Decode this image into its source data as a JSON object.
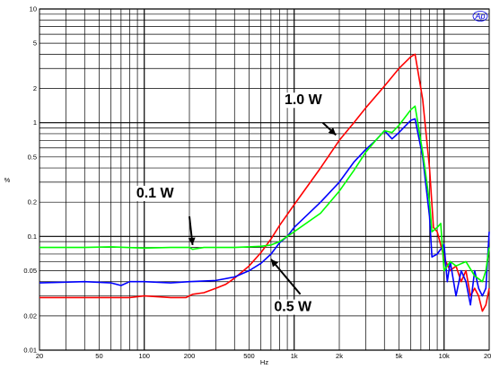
{
  "chart_data": {
    "type": "line",
    "xlabel": "Hz",
    "ylabel": "%",
    "x_scale": "log",
    "y_scale": "log",
    "xlim": [
      20,
      20000
    ],
    "ylim": [
      0.01,
      10
    ],
    "grid": true,
    "logo": "Ap",
    "x_ticks": [
      {
        "v": 20,
        "label": "20"
      },
      {
        "v": 50,
        "label": "50"
      },
      {
        "v": 100,
        "label": "100"
      },
      {
        "v": 200,
        "label": "200"
      },
      {
        "v": 500,
        "label": "500"
      },
      {
        "v": 1000,
        "label": "1k"
      },
      {
        "v": 2000,
        "label": "2k"
      },
      {
        "v": 5000,
        "label": "5k"
      },
      {
        "v": 10000,
        "label": "10k"
      },
      {
        "v": 20000,
        "label": "20k"
      }
    ],
    "y_ticks": [
      {
        "v": 0.01,
        "label": "0.01"
      },
      {
        "v": 0.02,
        "label": "0.02"
      },
      {
        "v": 0.05,
        "label": "0.05"
      },
      {
        "v": 0.1,
        "label": "0.1"
      },
      {
        "v": 0.2,
        "label": "0.2"
      },
      {
        "v": 0.5,
        "label": "0.5"
      },
      {
        "v": 1,
        "label": "1"
      },
      {
        "v": 2,
        "label": "2"
      },
      {
        "v": 5,
        "label": "5"
      },
      {
        "v": 10,
        "label": "10"
      }
    ],
    "series": [
      {
        "color": "#ff0000",
        "points": [
          [
            20,
            0.029
          ],
          [
            30,
            0.029
          ],
          [
            50,
            0.029
          ],
          [
            80,
            0.029
          ],
          [
            100,
            0.03
          ],
          [
            150,
            0.029
          ],
          [
            190,
            0.029
          ],
          [
            210,
            0.031
          ],
          [
            250,
            0.032
          ],
          [
            300,
            0.035
          ],
          [
            350,
            0.038
          ],
          [
            400,
            0.043
          ],
          [
            500,
            0.055
          ],
          [
            600,
            0.072
          ],
          [
            700,
            0.095
          ],
          [
            800,
            0.125
          ],
          [
            1000,
            0.19
          ],
          [
            1500,
            0.4
          ],
          [
            2000,
            0.7
          ],
          [
            2500,
            1.0
          ],
          [
            3000,
            1.35
          ],
          [
            4000,
            2.1
          ],
          [
            5000,
            3.0
          ],
          [
            6000,
            3.8
          ],
          [
            6400,
            4.0
          ],
          [
            7200,
            1.6
          ],
          [
            8000,
            0.4
          ],
          [
            8500,
            0.12
          ],
          [
            9000,
            0.11
          ],
          [
            10000,
            0.065
          ],
          [
            11000,
            0.05
          ],
          [
            12000,
            0.055
          ],
          [
            13000,
            0.04
          ],
          [
            14000,
            0.05
          ],
          [
            15000,
            0.03
          ],
          [
            16000,
            0.035
          ],
          [
            17000,
            0.03
          ],
          [
            18000,
            0.022
          ],
          [
            19000,
            0.025
          ],
          [
            20000,
            0.035
          ]
        ]
      },
      {
        "color": "#0000ff",
        "points": [
          [
            20,
            0.039
          ],
          [
            40,
            0.04
          ],
          [
            60,
            0.039
          ],
          [
            70,
            0.037
          ],
          [
            80,
            0.04
          ],
          [
            100,
            0.04
          ],
          [
            150,
            0.039
          ],
          [
            200,
            0.04
          ],
          [
            300,
            0.041
          ],
          [
            400,
            0.044
          ],
          [
            500,
            0.05
          ],
          [
            600,
            0.058
          ],
          [
            700,
            0.07
          ],
          [
            800,
            0.088
          ],
          [
            900,
            0.1
          ],
          [
            1000,
            0.12
          ],
          [
            1500,
            0.2
          ],
          [
            2000,
            0.3
          ],
          [
            2500,
            0.45
          ],
          [
            3000,
            0.58
          ],
          [
            3500,
            0.7
          ],
          [
            4000,
            0.85
          ],
          [
            4500,
            0.72
          ],
          [
            5000,
            0.82
          ],
          [
            6000,
            1.05
          ],
          [
            6400,
            1.08
          ],
          [
            7200,
            0.5
          ],
          [
            8000,
            0.15
          ],
          [
            8300,
            0.066
          ],
          [
            9000,
            0.07
          ],
          [
            10000,
            0.085
          ],
          [
            10500,
            0.04
          ],
          [
            11000,
            0.06
          ],
          [
            12000,
            0.03
          ],
          [
            13000,
            0.05
          ],
          [
            14000,
            0.04
          ],
          [
            15000,
            0.025
          ],
          [
            16000,
            0.05
          ],
          [
            17000,
            0.035
          ],
          [
            18000,
            0.03
          ],
          [
            19000,
            0.035
          ],
          [
            20000,
            0.11
          ]
        ]
      },
      {
        "color": "#00ff00",
        "points": [
          [
            20,
            0.08
          ],
          [
            40,
            0.08
          ],
          [
            60,
            0.081
          ],
          [
            100,
            0.079
          ],
          [
            150,
            0.08
          ],
          [
            200,
            0.08
          ],
          [
            210,
            0.077
          ],
          [
            250,
            0.08
          ],
          [
            300,
            0.08
          ],
          [
            400,
            0.08
          ],
          [
            500,
            0.081
          ],
          [
            600,
            0.082
          ],
          [
            700,
            0.084
          ],
          [
            800,
            0.09
          ],
          [
            1000,
            0.11
          ],
          [
            1500,
            0.16
          ],
          [
            2000,
            0.25
          ],
          [
            2500,
            0.38
          ],
          [
            3000,
            0.55
          ],
          [
            3500,
            0.7
          ],
          [
            4000,
            0.85
          ],
          [
            4500,
            0.82
          ],
          [
            5000,
            0.95
          ],
          [
            6000,
            1.3
          ],
          [
            6400,
            1.4
          ],
          [
            7200,
            0.55
          ],
          [
            8000,
            0.2
          ],
          [
            8300,
            0.11
          ],
          [
            9000,
            0.12
          ],
          [
            9500,
            0.13
          ],
          [
            10000,
            0.05
          ],
          [
            11000,
            0.06
          ],
          [
            12000,
            0.055
          ],
          [
            14000,
            0.06
          ],
          [
            16000,
            0.045
          ],
          [
            18000,
            0.04
          ],
          [
            19000,
            0.05
          ],
          [
            20000,
            0.08
          ]
        ]
      }
    ],
    "annotations": [
      {
        "text": "1.0 W",
        "label_x": 1150,
        "label_y": 1.45,
        "arrow_from": [
          1550,
          1.0
        ],
        "arrow_to": [
          1900,
          0.78
        ]
      },
      {
        "text": "0.1 W",
        "label_x": 118,
        "label_y": 0.22,
        "arrow_from": [
          200,
          0.15
        ],
        "arrow_to": [
          210,
          0.084
        ]
      },
      {
        "text": "0.5 W",
        "label_x": 980,
        "label_y": 0.022,
        "arrow_from": [
          1100,
          0.031
        ],
        "arrow_to": [
          700,
          0.063
        ]
      }
    ]
  }
}
